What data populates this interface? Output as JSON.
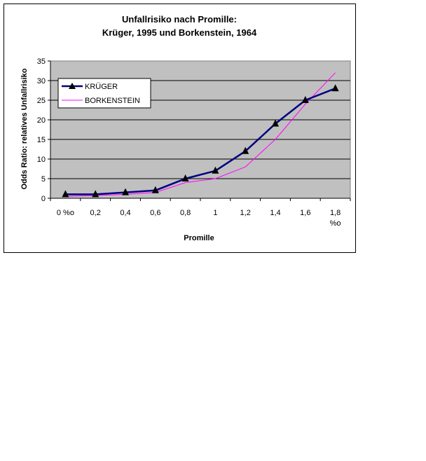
{
  "chart_data": {
    "type": "line",
    "title_line1": "Unfallrisiko nach Promille:",
    "title_line2": "Krüger, 1995 und Borkenstein, 1964",
    "xlabel": "Promille",
    "ylabel": "Odds Ratio: relatives Unfallrisiko",
    "categories": [
      "0 %o",
      "0,2",
      "0,4",
      "0,6",
      "0,8",
      "1",
      "1,2",
      "1,4",
      "1,6",
      "1,8"
    ],
    "x_unit_suffix": "%o",
    "ylim": [
      0,
      35
    ],
    "yticks": [
      0,
      5,
      10,
      15,
      20,
      25,
      30,
      35
    ],
    "grid": true,
    "plot_background": "#c0c0c0",
    "legend_position": "top-left",
    "series": [
      {
        "name": "KRÜGER",
        "color": "#000080",
        "marker": "triangle",
        "values": [
          1,
          1,
          1.5,
          2,
          5,
          7,
          12,
          19,
          25,
          28
        ]
      },
      {
        "name": "BORKENSTEIN",
        "color": "#ff00ff",
        "marker": "none",
        "values": [
          0.5,
          0.7,
          1,
          1.5,
          4,
          5,
          8,
          15,
          24,
          32
        ]
      }
    ]
  }
}
